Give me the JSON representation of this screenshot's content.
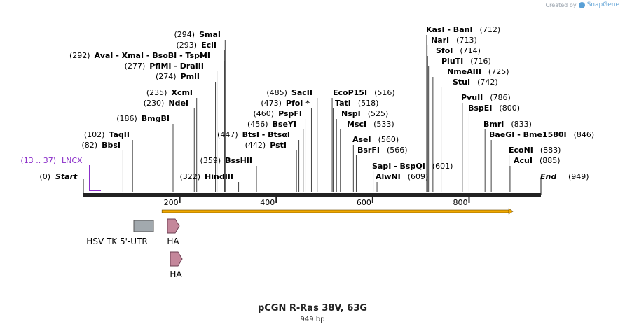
{
  "credit": {
    "prefix": "Created by",
    "brand": "SnapGene",
    "logo_icon": "snapgene-logo-icon"
  },
  "title": "pCGN R-Ras 38V, 63G",
  "length_label": "949 bp",
  "sequence_length": 949,
  "ruler": {
    "ticks": [
      200,
      400,
      600,
      800
    ]
  },
  "ends": [
    {
      "name": "Start",
      "pos_label": "(0)",
      "side": "left"
    },
    {
      "name": "End",
      "pos_label": "(949)",
      "side": "right"
    }
  ],
  "colors": {
    "backbone": "#222222",
    "orf_fill": "#f0a800",
    "feature_gray": "#a2a9ae",
    "ha_arrow": "#c4879b",
    "primer": "#8b2fc9",
    "label": "#000000"
  },
  "sites": [
    {
      "name": "BbsI",
      "pos": "(82)",
      "cut": 82,
      "side": "left"
    },
    {
      "name": "TaqII",
      "pos": "(102)",
      "cut": 102,
      "side": "left"
    },
    {
      "name": "BmgBI",
      "pos": "(186)",
      "cut": 186,
      "side": "left"
    },
    {
      "name": "NdeI",
      "pos": "(230)",
      "cut": 230,
      "side": "left"
    },
    {
      "name": "XcmI",
      "pos": "(235)",
      "cut": 235,
      "side": "left"
    },
    {
      "name": "PmlI",
      "pos": "(274)",
      "cut": 274,
      "side": "left"
    },
    {
      "name": "PflMI - DraIII",
      "pos": "(277)",
      "cut": 277,
      "side": "left"
    },
    {
      "name": "AvaI - XmaI - BsoBI - TspMI",
      "pos": "(292)",
      "cut": 292,
      "side": "left"
    },
    {
      "name": "EclI",
      "pos": "(293)",
      "cut": 293,
      "side": "left"
    },
    {
      "name": "SmaI",
      "pos": "(294)",
      "cut": 294,
      "side": "left"
    },
    {
      "name": "HindIII",
      "pos": "(322)",
      "cut": 322,
      "side": "left"
    },
    {
      "name": "BssHII",
      "pos": "(359)",
      "cut": 359,
      "side": "left"
    },
    {
      "name": "BtsI - BtsαI",
      "pos": "(447)",
      "cut": 447,
      "side": "left"
    },
    {
      "name": "PstI",
      "pos": "(442)",
      "cut": 442,
      "side": "left"
    },
    {
      "name": "BseYI",
      "pos": "(456)",
      "cut": 456,
      "side": "left"
    },
    {
      "name": "PspFI",
      "pos": "(460)",
      "cut": 460,
      "side": "left"
    },
    {
      "name": "PfoI *",
      "pos": "(473)",
      "cut": 473,
      "side": "left"
    },
    {
      "name": "SacII",
      "pos": "(485)",
      "cut": 485,
      "side": "left"
    },
    {
      "name": "EcoP15I",
      "pos": "(516)",
      "cut": 516,
      "side": "right"
    },
    {
      "name": "TatI",
      "pos": "(518)",
      "cut": 518,
      "side": "right"
    },
    {
      "name": "NspI",
      "pos": "(525)",
      "cut": 525,
      "side": "right"
    },
    {
      "name": "MscI",
      "pos": "(533)",
      "cut": 533,
      "side": "right"
    },
    {
      "name": "AseI",
      "pos": "(560)",
      "cut": 560,
      "side": "right"
    },
    {
      "name": "BsrFI",
      "pos": "(566)",
      "cut": 566,
      "side": "right"
    },
    {
      "name": "SapI - BspQI",
      "pos": "(601)",
      "cut": 601,
      "side": "right"
    },
    {
      "name": "AlwNI",
      "pos": "(609)",
      "cut": 609,
      "side": "right"
    },
    {
      "name": "KasI - BanI",
      "pos": "(712)",
      "cut": 712,
      "side": "right"
    },
    {
      "name": "NarI",
      "pos": "(713)",
      "cut": 713,
      "side": "right"
    },
    {
      "name": "SfoI",
      "pos": "(714)",
      "cut": 714,
      "side": "right"
    },
    {
      "name": "PluTI",
      "pos": "(716)",
      "cut": 716,
      "side": "right"
    },
    {
      "name": "NmeAIII",
      "pos": "(725)",
      "cut": 725,
      "side": "right"
    },
    {
      "name": "StuI",
      "pos": "(742)",
      "cut": 742,
      "side": "right"
    },
    {
      "name": "PvuII",
      "pos": "(786)",
      "cut": 786,
      "side": "right"
    },
    {
      "name": "BspEI",
      "pos": "(800)",
      "cut": 800,
      "side": "right"
    },
    {
      "name": "BmrI",
      "pos": "(833)",
      "cut": 833,
      "side": "right"
    },
    {
      "name": "BaeGI - Bme1580I",
      "pos": "(846)",
      "cut": 846,
      "side": "right"
    },
    {
      "name": "EcoNI",
      "pos": "(883)",
      "cut": 883,
      "side": "right"
    },
    {
      "name": "AcuI",
      "pos": "(885)",
      "cut": 885,
      "side": "right"
    }
  ],
  "primer": {
    "name": "LNCX",
    "range": "(13 .. 37)",
    "start": 13,
    "end": 37
  },
  "orf": {
    "start": 163,
    "end": 891,
    "direction": "forward"
  },
  "features": [
    {
      "name": "HSV TK 5'-UTR",
      "start": 107,
      "end": 147,
      "type": "box"
    },
    {
      "name": "HA",
      "start": 171,
      "end": 199,
      "type": "arrow"
    },
    {
      "name": "HA",
      "start": 177,
      "end": 204,
      "type": "arrow"
    }
  ]
}
